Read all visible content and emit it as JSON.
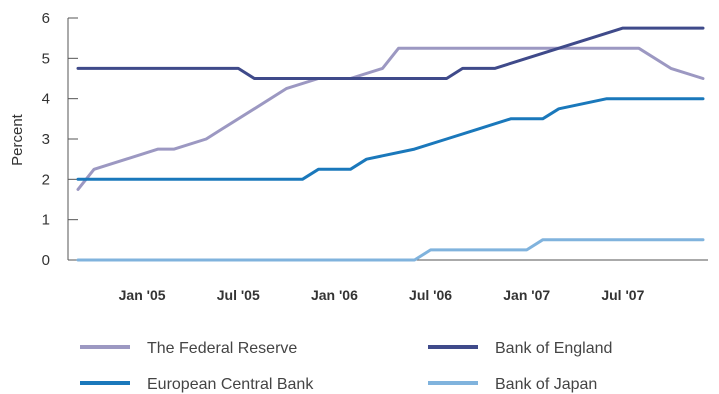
{
  "chart_data": {
    "type": "line",
    "xlabel": "",
    "ylabel": "Percent",
    "ylim": [
      0,
      6
    ],
    "yticks": [
      0,
      1,
      2,
      3,
      4,
      5,
      6
    ],
    "xlim": [
      "2004-09",
      "2007-12"
    ],
    "x_ticks": [
      {
        "label": "Jan '05",
        "x": "2005-01"
      },
      {
        "label": "Jul '05",
        "x": "2005-07"
      },
      {
        "label": "Jan '06",
        "x": "2006-01"
      },
      {
        "label": "Jul '06",
        "x": "2006-07"
      },
      {
        "label": "Jan '07",
        "x": "2007-01"
      },
      {
        "label": "Jul '07",
        "x": "2007-07"
      }
    ],
    "grid": false,
    "legend_position": "bottom",
    "series": [
      {
        "name": "The Federal Reserve",
        "color": "#9c98c2",
        "points": [
          [
            "2004-09",
            1.75
          ],
          [
            "2004-10",
            2.25
          ],
          [
            "2004-12",
            2.5
          ],
          [
            "2005-02",
            2.75
          ],
          [
            "2005-03",
            2.75
          ],
          [
            "2005-05",
            3.0
          ],
          [
            "2005-06",
            3.25
          ],
          [
            "2005-08",
            3.75
          ],
          [
            "2005-10",
            4.25
          ],
          [
            "2005-12",
            4.5
          ],
          [
            "2006-02",
            4.5
          ],
          [
            "2006-04",
            4.75
          ],
          [
            "2006-05",
            5.25
          ],
          [
            "2007-08",
            5.25
          ],
          [
            "2007-10",
            4.75
          ],
          [
            "2007-12",
            4.5
          ]
        ]
      },
      {
        "name": "Bank of England",
        "color": "#3f4a8a",
        "points": [
          [
            "2004-09",
            4.75
          ],
          [
            "2005-07",
            4.75
          ],
          [
            "2005-08",
            4.5
          ],
          [
            "2006-08",
            4.5
          ],
          [
            "2006-09",
            4.75
          ],
          [
            "2006-11",
            4.75
          ],
          [
            "2007-01",
            5.0
          ],
          [
            "2007-05",
            5.5
          ],
          [
            "2007-07",
            5.75
          ],
          [
            "2007-12",
            5.75
          ]
        ]
      },
      {
        "name": "European Central Bank",
        "color": "#1a78bb",
        "points": [
          [
            "2004-09",
            2.0
          ],
          [
            "2005-11",
            2.0
          ],
          [
            "2005-12",
            2.25
          ],
          [
            "2006-02",
            2.25
          ],
          [
            "2006-03",
            2.5
          ],
          [
            "2006-06",
            2.75
          ],
          [
            "2006-08",
            3.0
          ],
          [
            "2006-10",
            3.25
          ],
          [
            "2006-12",
            3.5
          ],
          [
            "2007-02",
            3.5
          ],
          [
            "2007-03",
            3.75
          ],
          [
            "2007-06",
            4.0
          ],
          [
            "2007-12",
            4.0
          ]
        ]
      },
      {
        "name": "Bank of Japan",
        "color": "#80b3dd",
        "points": [
          [
            "2004-09",
            0.0
          ],
          [
            "2006-06",
            0.0
          ],
          [
            "2006-07",
            0.25
          ],
          [
            "2007-01",
            0.25
          ],
          [
            "2007-02",
            0.5
          ],
          [
            "2007-12",
            0.5
          ]
        ]
      }
    ]
  }
}
